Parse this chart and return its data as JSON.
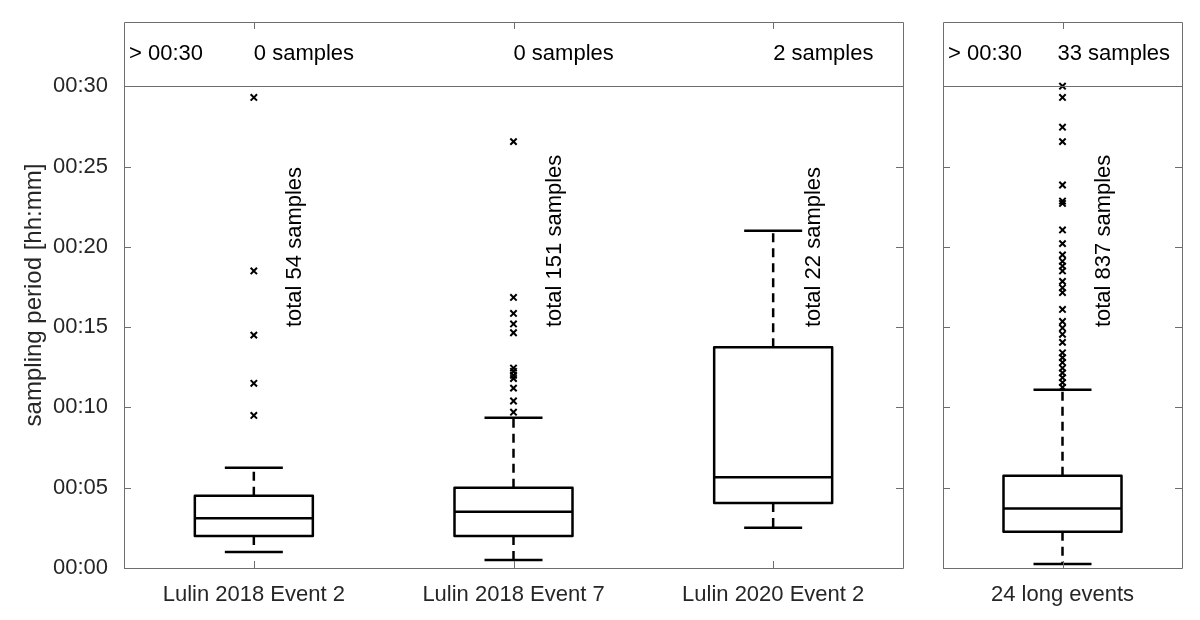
{
  "chart_data": [
    {
      "type": "box",
      "ylabel": "sampling period [hh:mm]",
      "categories": [
        "Lulin 2018 Event 2",
        "Lulin 2018 Event 7",
        "Lulin 2020 Event 2"
      ],
      "color": "#000000",
      "marker": "cross",
      "boxes": [
        {
          "low": 1,
          "q1": 2,
          "median": 3.1,
          "q3": 4.5,
          "high": 6.25,
          "outliers": [
            9.5,
            11.5,
            14.5,
            18.5,
            29.3
          ]
        },
        {
          "low": 0.5,
          "q1": 2,
          "median": 3.5,
          "q3": 5,
          "high": 9.35,
          "outliers": [
            9.7,
            10.4,
            11.2,
            11.8,
            12,
            12.25,
            12.45,
            14.65,
            15.2,
            15.85,
            16.85,
            26.55
          ]
        },
        {
          "low": 2.5,
          "q1": 4.05,
          "median": 5.65,
          "q3": 13.75,
          "high": 21
        }
      ],
      "ylim": [
        0,
        34
      ],
      "yticks": [
        {
          "value": 0,
          "label": "00:00"
        },
        {
          "value": 5,
          "label": "00:05"
        },
        {
          "value": 10,
          "label": "00:10"
        },
        {
          "value": 15,
          "label": "00:15"
        },
        {
          "value": 20,
          "label": "00:20"
        },
        {
          "value": 25,
          "label": "00:25"
        },
        {
          "value": 30,
          "label": "00:30"
        }
      ],
      "ref_lines": [
        {
          "axis": "y",
          "value": 30,
          "label": "> 00:30",
          "color": "#6e6e6e"
        }
      ],
      "annotations": [
        "0 samples",
        "0 samples",
        "2 samples",
        "total 54 samples",
        "total 151 samples",
        "total 22 samples"
      ]
    },
    {
      "type": "box",
      "categories": [
        "24 long events"
      ],
      "color": "#000000",
      "marker": "cross",
      "tick_labels": "x",
      "boxes": [
        {
          "low": 0.25,
          "q1": 2.25,
          "median": 3.7,
          "q3": 5.75,
          "high": 11.1,
          "outliers": [
            11.25,
            11.55,
            11.85,
            12.15,
            12.45,
            12.8,
            13.1,
            13.4,
            14.05,
            14.55,
            14.95,
            15.35,
            16.1,
            17.15,
            17.45,
            17.85,
            18.5,
            18.8,
            19.1,
            19.5,
            20.2,
            21.05,
            22.7,
            22.85,
            23.85,
            26.55,
            27.45,
            29.3,
            30
          ]
        }
      ],
      "ylim": [
        0,
        34
      ],
      "yticks": [
        {
          "value": 0,
          "label": null
        },
        {
          "value": 5,
          "label": null
        },
        {
          "value": 10,
          "label": null
        },
        {
          "value": 15,
          "label": null
        },
        {
          "value": 20,
          "label": null
        },
        {
          "value": 25,
          "label": null
        },
        {
          "value": 30,
          "label": null
        }
      ],
      "ref_lines": [
        {
          "axis": "y",
          "value": 30,
          "label": "> 00:30",
          "color": "#6e6e6e"
        }
      ],
      "annotations": [
        "33 samples",
        "total 837 samples"
      ]
    }
  ]
}
